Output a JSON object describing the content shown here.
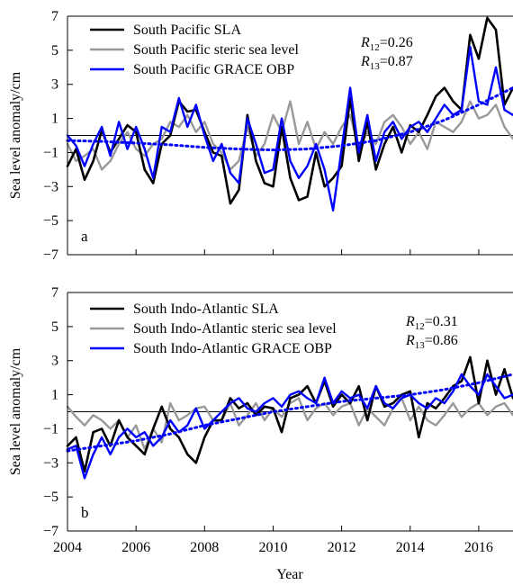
{
  "figure": {
    "xlabel": "Year",
    "ylabel": "Sea level anomaly/cm"
  },
  "chart_data": [
    {
      "type": "line",
      "panel_label": "a",
      "xlabel": "Year",
      "ylabel": "Sea level  anomaly/cm",
      "xlim": [
        2004,
        2017
      ],
      "ylim": [
        -7,
        7
      ],
      "xticks": [
        "2004",
        "2006",
        "2008",
        "2010",
        "2012",
        "2014",
        "2016"
      ],
      "yticks": [
        "7",
        "5",
        "3",
        "1",
        "−1",
        "−3",
        "−5",
        "−7"
      ],
      "grid": false,
      "zero_line": true,
      "legend_position": "top-left",
      "stats": [
        {
          "symbol": "R",
          "sub": "12",
          "value": "=0.26"
        },
        {
          "symbol": "R",
          "sub": "13",
          "value": "=0.87"
        }
      ],
      "series": [
        {
          "name": "South Pacific SLA",
          "color": "#000000",
          "width": 2.6,
          "x": [
            2004.0,
            2004.25,
            2004.5,
            2004.75,
            2005.0,
            2005.25,
            2005.5,
            2005.75,
            2006.0,
            2006.25,
            2006.5,
            2006.75,
            2007.0,
            2007.25,
            2007.5,
            2007.75,
            2008.0,
            2008.25,
            2008.5,
            2008.75,
            2009.0,
            2009.25,
            2009.5,
            2009.75,
            2010.0,
            2010.25,
            2010.5,
            2010.75,
            2011.0,
            2011.25,
            2011.5,
            2011.75,
            2012.0,
            2012.25,
            2012.5,
            2012.75,
            2013.0,
            2013.25,
            2013.5,
            2013.75,
            2014.0,
            2014.25,
            2014.5,
            2014.75,
            2015.0,
            2015.25,
            2015.5,
            2015.75,
            2016.0,
            2016.25,
            2016.5,
            2016.75,
            2017.0
          ],
          "y": [
            -1.8,
            -0.8,
            -2.6,
            -1.5,
            0.3,
            -1.0,
            -0.2,
            0.6,
            0.2,
            -2.0,
            -2.8,
            -0.5,
            0.0,
            2.0,
            1.4,
            1.5,
            0.2,
            -1.0,
            -1.2,
            -4.0,
            -3.2,
            1.2,
            -1.5,
            -2.8,
            -3.0,
            0.5,
            -2.5,
            -3.8,
            -3.6,
            -1.0,
            -3.0,
            -2.5,
            -1.8,
            2.2,
            -1.5,
            0.8,
            -2.0,
            -0.5,
            0.5,
            -1.0,
            0.6,
            0.2,
            1.2,
            2.3,
            2.8,
            2.0,
            1.5,
            5.9,
            4.5,
            6.9,
            6.2,
            1.8,
            2.8
          ]
        },
        {
          "name": "South Pacific steric sea level",
          "color": "#999999",
          "width": 2.4,
          "x": [
            2004.0,
            2004.25,
            2004.5,
            2004.75,
            2005.0,
            2005.25,
            2005.5,
            2005.75,
            2006.0,
            2006.25,
            2006.5,
            2006.75,
            2007.0,
            2007.25,
            2007.5,
            2007.75,
            2008.0,
            2008.25,
            2008.5,
            2008.75,
            2009.0,
            2009.25,
            2009.5,
            2009.75,
            2010.0,
            2010.25,
            2010.5,
            2010.75,
            2011.0,
            2011.25,
            2011.5,
            2011.75,
            2012.0,
            2012.25,
            2012.5,
            2012.75,
            2013.0,
            2013.25,
            2013.5,
            2013.75,
            2014.0,
            2014.25,
            2014.5,
            2014.75,
            2015.0,
            2015.25,
            2015.5,
            2015.75,
            2016.0,
            2016.25,
            2016.5,
            2016.75,
            2017.0
          ],
          "y": [
            -0.5,
            -1.5,
            -1.2,
            -0.8,
            -2.0,
            -1.5,
            -0.5,
            0.2,
            -0.8,
            -1.2,
            -0.5,
            -0.2,
            0.8,
            0.5,
            1.2,
            0.2,
            0.8,
            -0.5,
            -1.0,
            -2.0,
            -1.5,
            0.5,
            -1.2,
            -0.5,
            1.2,
            0.2,
            2.0,
            -0.5,
            0.8,
            -0.8,
            0.2,
            -0.5,
            0.5,
            1.2,
            -0.8,
            0.2,
            -0.5,
            0.8,
            1.2,
            0.5,
            -0.5,
            0.2,
            -0.8,
            0.8,
            0.5,
            0.2,
            0.8,
            2.0,
            1.0,
            1.2,
            1.8,
            0.5,
            -0.2
          ]
        },
        {
          "name": "South Pacific GRACE OBP",
          "color": "#0000ff",
          "width": 2.4,
          "x": [
            2004.0,
            2004.25,
            2004.5,
            2004.75,
            2005.0,
            2005.25,
            2005.5,
            2005.75,
            2006.0,
            2006.25,
            2006.5,
            2006.75,
            2007.0,
            2007.25,
            2007.5,
            2007.75,
            2008.0,
            2008.25,
            2008.5,
            2008.75,
            2009.0,
            2009.25,
            2009.5,
            2009.75,
            2010.0,
            2010.25,
            2010.5,
            2010.75,
            2011.0,
            2011.25,
            2011.5,
            2011.75,
            2012.0,
            2012.25,
            2012.5,
            2012.75,
            2013.0,
            2013.25,
            2013.5,
            2013.75,
            2014.0,
            2014.25,
            2014.5,
            2014.75,
            2015.0,
            2015.25,
            2015.5,
            2015.75,
            2016.0,
            2016.25,
            2016.5,
            2016.75,
            2017.0
          ],
          "y": [
            0.0,
            -0.6,
            -1.8,
            -0.5,
            0.5,
            -1.2,
            0.8,
            -0.8,
            0.5,
            -0.8,
            -2.5,
            0.5,
            0.2,
            2.2,
            0.5,
            1.8,
            0.0,
            -1.5,
            -0.5,
            -2.2,
            -2.8,
            1.0,
            -0.5,
            -2.2,
            -2.0,
            1.0,
            -1.5,
            -2.5,
            -1.8,
            -0.5,
            -2.0,
            -4.4,
            -0.8,
            2.8,
            -1.0,
            1.2,
            -1.5,
            0.2,
            0.8,
            -0.2,
            0.5,
            0.8,
            0.2,
            1.0,
            1.8,
            1.2,
            1.5,
            5.2,
            2.0,
            1.8,
            4.0,
            1.5,
            1.2
          ]
        },
        {
          "name": "",
          "style": "dotted",
          "color": "#0000ff",
          "width": 3.0,
          "x": [
            2004.0,
            2005.0,
            2006.0,
            2007.0,
            2008.0,
            2009.0,
            2010.0,
            2011.0,
            2012.0,
            2013.0,
            2014.0,
            2015.0,
            2016.0,
            2017.0
          ],
          "y": [
            -0.3,
            -0.35,
            -0.45,
            -0.55,
            -0.7,
            -0.8,
            -0.85,
            -0.8,
            -0.6,
            -0.3,
            0.2,
            0.9,
            1.8,
            2.8
          ]
        }
      ]
    },
    {
      "type": "line",
      "panel_label": "b",
      "xlabel": "Year",
      "ylabel": "Sea level anomaly/cm",
      "xlim": [
        2004,
        2017
      ],
      "ylim": [
        -7,
        7
      ],
      "xticks": [
        "2004",
        "2006",
        "2008",
        "2010",
        "2012",
        "2014",
        "2016"
      ],
      "yticks": [
        "7",
        "5",
        "3",
        "1",
        "−1",
        "−3",
        "−5",
        "−7"
      ],
      "grid": false,
      "zero_line": true,
      "legend_position": "top-left",
      "stats": [
        {
          "symbol": "R",
          "sub": "12",
          "value": "=0.31"
        },
        {
          "symbol": "R",
          "sub": "13",
          "value": "=0.86"
        }
      ],
      "series": [
        {
          "name": "South Indo-Atlantic SLA",
          "color": "#000000",
          "width": 2.6,
          "x": [
            2004.0,
            2004.25,
            2004.5,
            2004.75,
            2005.0,
            2005.25,
            2005.5,
            2005.75,
            2006.0,
            2006.25,
            2006.5,
            2006.75,
            2007.0,
            2007.25,
            2007.5,
            2007.75,
            2008.0,
            2008.25,
            2008.5,
            2008.75,
            2009.0,
            2009.25,
            2009.5,
            2009.75,
            2010.0,
            2010.25,
            2010.5,
            2010.75,
            2011.0,
            2011.25,
            2011.5,
            2011.75,
            2012.0,
            2012.25,
            2012.5,
            2012.75,
            2013.0,
            2013.25,
            2013.5,
            2013.75,
            2014.0,
            2014.25,
            2014.5,
            2014.75,
            2015.0,
            2015.25,
            2015.5,
            2015.75,
            2016.0,
            2016.25,
            2016.5,
            2016.75,
            2017.0
          ],
          "y": [
            -2.0,
            -1.5,
            -3.5,
            -1.2,
            -1.0,
            -2.0,
            -0.5,
            -1.5,
            -2.0,
            -2.5,
            -1.0,
            0.3,
            -1.0,
            -1.5,
            -2.5,
            -3.0,
            -1.5,
            -0.5,
            -0.5,
            0.8,
            0.2,
            0.5,
            -0.2,
            0.3,
            0.2,
            -1.2,
            0.8,
            1.0,
            1.5,
            0.5,
            1.8,
            0.3,
            1.0,
            0.5,
            1.5,
            -0.5,
            1.5,
            0.3,
            0.5,
            1.0,
            1.2,
            -1.5,
            0.5,
            0.2,
            0.8,
            1.5,
            1.8,
            3.2,
            0.5,
            3.0,
            1.0,
            2.5,
            0.8
          ]
        },
        {
          "name": "South Indo-Atlantic steric sea level",
          "color": "#999999",
          "width": 2.4,
          "x": [
            2004.0,
            2004.25,
            2004.5,
            2004.75,
            2005.0,
            2005.25,
            2005.5,
            2005.75,
            2006.0,
            2006.25,
            2006.5,
            2006.75,
            2007.0,
            2007.25,
            2007.5,
            2007.75,
            2008.0,
            2008.25,
            2008.5,
            2008.75,
            2009.0,
            2009.25,
            2009.5,
            2009.75,
            2010.0,
            2010.25,
            2010.5,
            2010.75,
            2011.0,
            2011.25,
            2011.5,
            2011.75,
            2012.0,
            2012.25,
            2012.5,
            2012.75,
            2013.0,
            2013.25,
            2013.5,
            2013.75,
            2014.0,
            2014.25,
            2014.5,
            2014.75,
            2015.0,
            2015.25,
            2015.5,
            2015.75,
            2016.0,
            2016.25,
            2016.5,
            2016.75,
            2017.0
          ],
          "y": [
            0.3,
            -0.3,
            -0.8,
            -0.2,
            -0.5,
            -1.0,
            -0.5,
            -1.5,
            -0.8,
            -2.2,
            -1.0,
            -1.8,
            0.5,
            -0.5,
            -0.2,
            0.2,
            0.3,
            -0.5,
            -0.5,
            0.5,
            -0.8,
            -0.2,
            0.5,
            -0.5,
            0.2,
            -0.3,
            0.5,
            0.8,
            -0.5,
            0.2,
            0.5,
            -0.2,
            0.3,
            0.5,
            -0.8,
            0.2,
            -0.3,
            -0.8,
            0.2,
            0.8,
            -0.5,
            0.3,
            -0.5,
            -0.8,
            -0.2,
            0.5,
            -0.3,
            0.2,
            0.5,
            -0.2,
            0.3,
            0.5,
            -0.2
          ]
        },
        {
          "name": "South Indo-Atlantic GRACE OBP",
          "color": "#0000ff",
          "width": 2.4,
          "x": [
            2004.0,
            2004.25,
            2004.5,
            2004.75,
            2005.0,
            2005.25,
            2005.5,
            2005.75,
            2006.0,
            2006.25,
            2006.5,
            2006.75,
            2007.0,
            2007.25,
            2007.5,
            2007.75,
            2008.0,
            2008.25,
            2008.5,
            2008.75,
            2009.0,
            2009.25,
            2009.5,
            2009.75,
            2010.0,
            2010.25,
            2010.5,
            2010.75,
            2011.0,
            2011.25,
            2011.5,
            2011.75,
            2012.0,
            2012.25,
            2012.5,
            2012.75,
            2013.0,
            2013.25,
            2013.5,
            2013.75,
            2014.0,
            2014.25,
            2014.5,
            2014.75,
            2015.0,
            2015.25,
            2015.5,
            2015.75,
            2016.0,
            2016.25,
            2016.5,
            2016.75,
            2017.0
          ],
          "y": [
            -2.2,
            -2.0,
            -3.9,
            -2.5,
            -1.5,
            -2.5,
            -1.5,
            -1.0,
            -1.5,
            -1.2,
            -2.0,
            -1.5,
            -0.5,
            -1.2,
            -0.8,
            0.2,
            -1.0,
            -0.5,
            0.0,
            0.5,
            0.8,
            0.2,
            0.0,
            0.5,
            0.8,
            0.3,
            1.0,
            1.2,
            0.8,
            0.5,
            2.0,
            0.5,
            1.2,
            0.8,
            1.0,
            0.2,
            1.5,
            0.5,
            0.2,
            0.8,
            1.0,
            0.5,
            0.2,
            0.8,
            0.5,
            1.2,
            2.2,
            1.5,
            1.0,
            2.2,
            1.5,
            0.8,
            1.0
          ]
        },
        {
          "name": "",
          "style": "dotted",
          "color": "#0000ff",
          "width": 3.0,
          "x": [
            2004.0,
            2005.0,
            2006.0,
            2007.0,
            2008.0,
            2009.0,
            2010.0,
            2011.0,
            2012.0,
            2013.0,
            2014.0,
            2015.0,
            2016.0,
            2017.0
          ],
          "y": [
            -2.3,
            -2.0,
            -1.7,
            -1.3,
            -0.8,
            -0.4,
            0.0,
            0.3,
            0.6,
            0.8,
            1.0,
            1.3,
            1.7,
            2.2
          ]
        }
      ]
    }
  ]
}
